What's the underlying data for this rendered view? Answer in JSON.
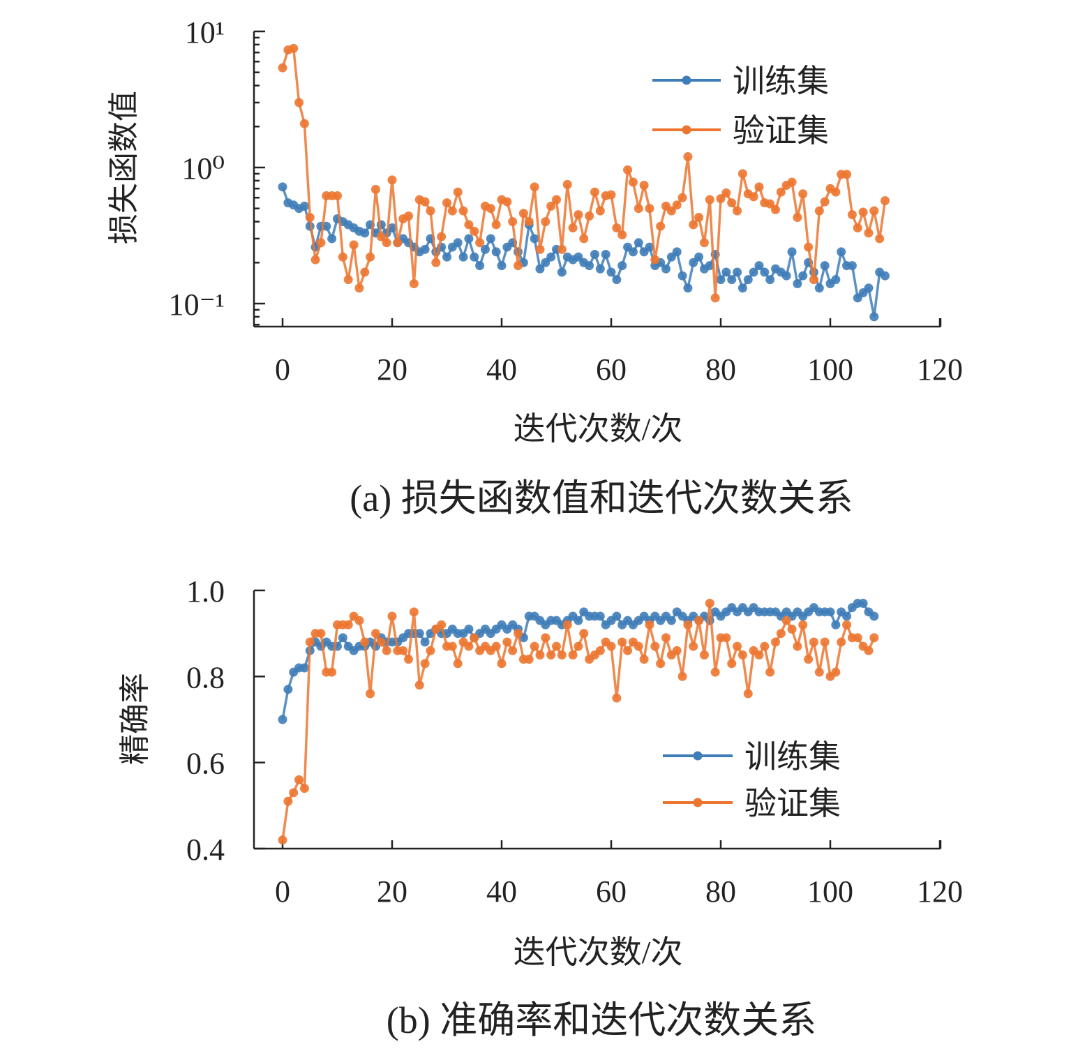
{
  "chart_data": [
    {
      "id": "loss",
      "type": "line",
      "caption": "(a) 损失函数值和迭代次数关系",
      "xlabel": "迭代次数/次",
      "ylabel": "损失函数值",
      "yscale": "log",
      "xlim": [
        0,
        120
      ],
      "ylim": [
        0.07,
        10
      ],
      "xticks": [
        0,
        20,
        40,
        60,
        80,
        100,
        120
      ],
      "xtick_labels": [
        "0",
        "20",
        "40",
        "60",
        "80",
        "100",
        "120"
      ],
      "yticks": [
        10,
        1,
        0.1
      ],
      "ytick_labels": [
        "10¹",
        "10⁰",
        "10⁻¹"
      ],
      "legend_position": "top-right",
      "grid": false,
      "series": [
        {
          "name": "训练集",
          "color": "#3f7db8",
          "values": [
            0.72,
            0.55,
            0.53,
            0.5,
            0.52,
            0.37,
            0.26,
            0.37,
            0.37,
            0.3,
            0.42,
            0.4,
            0.38,
            0.36,
            0.34,
            0.33,
            0.38,
            0.33,
            0.38,
            0.33,
            0.36,
            0.28,
            0.3,
            0.28,
            0.26,
            0.24,
            0.25,
            0.3,
            0.24,
            0.26,
            0.22,
            0.26,
            0.28,
            0.22,
            0.3,
            0.22,
            0.19,
            0.25,
            0.3,
            0.24,
            0.19,
            0.26,
            0.28,
            0.24,
            0.2,
            0.38,
            0.3,
            0.18,
            0.2,
            0.22,
            0.25,
            0.17,
            0.22,
            0.21,
            0.22,
            0.2,
            0.19,
            0.23,
            0.18,
            0.23,
            0.17,
            0.15,
            0.19,
            0.26,
            0.24,
            0.28,
            0.24,
            0.26,
            0.19,
            0.2,
            0.18,
            0.22,
            0.24,
            0.16,
            0.13,
            0.2,
            0.22,
            0.18,
            0.19,
            0.23,
            0.15,
            0.17,
            0.15,
            0.17,
            0.13,
            0.15,
            0.17,
            0.19,
            0.17,
            0.15,
            0.18,
            0.17,
            0.16,
            0.24,
            0.14,
            0.16,
            0.2,
            0.17,
            0.13,
            0.19,
            0.14,
            0.15,
            0.24,
            0.19,
            0.19,
            0.11,
            0.12,
            0.13,
            0.08,
            0.17,
            0.16
          ]
        },
        {
          "name": "验证集",
          "color": "#ec7530",
          "values": [
            5.4,
            7.3,
            7.5,
            3.0,
            2.1,
            0.43,
            0.21,
            0.28,
            0.62,
            0.62,
            0.62,
            0.22,
            0.15,
            0.27,
            0.13,
            0.17,
            0.22,
            0.69,
            0.31,
            0.28,
            0.81,
            0.28,
            0.42,
            0.44,
            0.14,
            0.58,
            0.56,
            0.48,
            0.2,
            0.31,
            0.55,
            0.48,
            0.66,
            0.48,
            0.38,
            0.34,
            0.28,
            0.52,
            0.5,
            0.38,
            0.58,
            0.56,
            0.4,
            0.19,
            0.46,
            0.4,
            0.72,
            0.25,
            0.4,
            0.52,
            0.58,
            0.25,
            0.75,
            0.36,
            0.45,
            0.3,
            0.44,
            0.66,
            0.48,
            0.62,
            0.63,
            0.36,
            0.32,
            0.96,
            0.78,
            0.5,
            0.74,
            0.5,
            0.21,
            0.37,
            0.52,
            0.48,
            0.53,
            0.6,
            1.2,
            0.38,
            0.43,
            0.28,
            0.58,
            0.11,
            0.59,
            0.65,
            0.55,
            0.48,
            0.9,
            0.64,
            0.61,
            0.72,
            0.55,
            0.54,
            0.49,
            0.66,
            0.74,
            0.78,
            0.43,
            0.64,
            0.26,
            0.15,
            0.48,
            0.56,
            0.7,
            0.66,
            0.89,
            0.89,
            0.45,
            0.36,
            0.47,
            0.33,
            0.48,
            0.3,
            0.57
          ]
        }
      ]
    },
    {
      "id": "accuracy",
      "type": "line",
      "caption": "(b) 准确率和迭代次数关系",
      "xlabel": "迭代次数/次",
      "ylabel": "精确率",
      "yscale": "linear",
      "xlim": [
        0,
        120
      ],
      "ylim": [
        0.4,
        1.0
      ],
      "xticks": [
        0,
        20,
        40,
        60,
        80,
        100,
        120
      ],
      "xtick_labels": [
        "0",
        "20",
        "40",
        "60",
        "80",
        "100",
        "120"
      ],
      "yticks": [
        1.0,
        0.8,
        0.6,
        0.4
      ],
      "ytick_labels": [
        "1.0",
        "0.8",
        "0.6",
        "0.4"
      ],
      "legend_position": "center-right",
      "grid": false,
      "series": [
        {
          "name": "训练集",
          "color": "#3f7db8",
          "values": [
            0.7,
            0.77,
            0.81,
            0.82,
            0.82,
            0.86,
            0.88,
            0.87,
            0.88,
            0.87,
            0.87,
            0.89,
            0.87,
            0.86,
            0.87,
            0.87,
            0.88,
            0.87,
            0.89,
            0.88,
            0.88,
            0.88,
            0.89,
            0.9,
            0.9,
            0.9,
            0.88,
            0.9,
            0.91,
            0.9,
            0.9,
            0.91,
            0.9,
            0.9,
            0.91,
            0.89,
            0.9,
            0.91,
            0.9,
            0.91,
            0.92,
            0.91,
            0.92,
            0.91,
            0.89,
            0.94,
            0.94,
            0.93,
            0.92,
            0.93,
            0.93,
            0.92,
            0.93,
            0.94,
            0.93,
            0.95,
            0.94,
            0.94,
            0.94,
            0.92,
            0.93,
            0.94,
            0.92,
            0.93,
            0.92,
            0.93,
            0.94,
            0.93,
            0.94,
            0.93,
            0.94,
            0.93,
            0.95,
            0.94,
            0.93,
            0.94,
            0.93,
            0.94,
            0.93,
            0.95,
            0.94,
            0.95,
            0.96,
            0.95,
            0.96,
            0.95,
            0.96,
            0.95,
            0.95,
            0.95,
            0.95,
            0.94,
            0.95,
            0.94,
            0.95,
            0.94,
            0.95,
            0.96,
            0.95,
            0.95,
            0.95,
            0.92,
            0.95,
            0.94,
            0.96,
            0.97,
            0.97,
            0.95,
            0.94
          ]
        },
        {
          "name": "验证集",
          "color": "#ec7530",
          "values": [
            0.42,
            0.51,
            0.53,
            0.56,
            0.54,
            0.88,
            0.9,
            0.9,
            0.81,
            0.81,
            0.92,
            0.92,
            0.92,
            0.94,
            0.93,
            0.88,
            0.76,
            0.9,
            0.88,
            0.86,
            0.94,
            0.86,
            0.86,
            0.84,
            0.95,
            0.78,
            0.83,
            0.86,
            0.91,
            0.92,
            0.87,
            0.87,
            0.83,
            0.88,
            0.87,
            0.89,
            0.86,
            0.87,
            0.86,
            0.87,
            0.83,
            0.88,
            0.86,
            0.9,
            0.84,
            0.84,
            0.87,
            0.85,
            0.89,
            0.85,
            0.87,
            0.85,
            0.92,
            0.85,
            0.87,
            0.9,
            0.84,
            0.85,
            0.86,
            0.88,
            0.87,
            0.75,
            0.88,
            0.86,
            0.88,
            0.87,
            0.84,
            0.92,
            0.87,
            0.83,
            0.89,
            0.85,
            0.86,
            0.8,
            0.92,
            0.87,
            0.93,
            0.85,
            0.97,
            0.81,
            0.89,
            0.89,
            0.83,
            0.87,
            0.85,
            0.76,
            0.86,
            0.85,
            0.87,
            0.81,
            0.88,
            0.9,
            0.93,
            0.91,
            0.87,
            0.92,
            0.84,
            0.88,
            0.81,
            0.88,
            0.8,
            0.81,
            0.88,
            0.92,
            0.89,
            0.89,
            0.87,
            0.86,
            0.89
          ]
        }
      ]
    }
  ]
}
